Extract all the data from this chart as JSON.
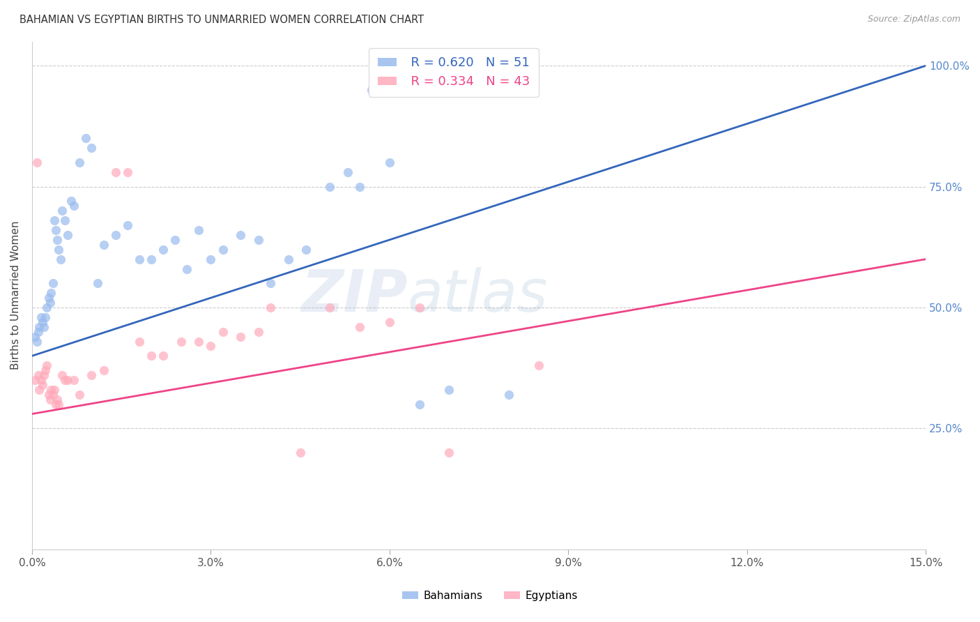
{
  "title": "BAHAMIAN VS EGYPTIAN BIRTHS TO UNMARRIED WOMEN CORRELATION CHART",
  "source": "Source: ZipAtlas.com",
  "ylabel": "Births to Unmarried Women",
  "xlim": [
    0.0,
    15.0
  ],
  "ylim": [
    0.0,
    105.0
  ],
  "ytick_vals": [
    25.0,
    50.0,
    75.0,
    100.0
  ],
  "xtick_vals": [
    0.0,
    3.0,
    6.0,
    9.0,
    12.0,
    15.0
  ],
  "legend_blue_r": "R = 0.620",
  "legend_blue_n": "N = 51",
  "legend_pink_r": "R = 0.334",
  "legend_pink_n": "N = 43",
  "blue_dot_color": "#99BBEE",
  "pink_dot_color": "#FFAABB",
  "blue_line_color": "#3366BB",
  "pink_line_color": "#EE4488",
  "blue_label": "Bahamians",
  "pink_label": "Egyptians",
  "watermark_color": "#C8D8EE",
  "watermark_alpha": 0.4,
  "title_color": "#333333",
  "source_color": "#999999",
  "grid_color": "#CCCCCC",
  "right_tick_color": "#5588CC",
  "bahamians_x": [
    0.05,
    0.08,
    0.1,
    0.12,
    0.15,
    0.18,
    0.2,
    0.22,
    0.25,
    0.28,
    0.3,
    0.32,
    0.35,
    0.38,
    0.4,
    0.42,
    0.45,
    0.48,
    0.5,
    0.55,
    0.6,
    0.65,
    0.7,
    0.8,
    0.9,
    1.0,
    1.1,
    1.2,
    1.4,
    1.6,
    1.8,
    2.0,
    2.2,
    2.4,
    2.6,
    2.8,
    3.0,
    3.2,
    3.5,
    3.8,
    4.0,
    4.3,
    4.6,
    5.0,
    5.5,
    6.0,
    6.5,
    7.0,
    8.0,
    5.3,
    5.7
  ],
  "bahamians_y": [
    44.0,
    43.0,
    45.0,
    46.0,
    48.0,
    47.0,
    46.0,
    48.0,
    50.0,
    52.0,
    51.0,
    53.0,
    55.0,
    68.0,
    66.0,
    64.0,
    62.0,
    60.0,
    70.0,
    68.0,
    65.0,
    72.0,
    71.0,
    80.0,
    85.0,
    83.0,
    55.0,
    63.0,
    65.0,
    67.0,
    60.0,
    60.0,
    62.0,
    64.0,
    58.0,
    66.0,
    60.0,
    62.0,
    65.0,
    64.0,
    55.0,
    60.0,
    62.0,
    75.0,
    75.0,
    80.0,
    30.0,
    33.0,
    32.0,
    78.0,
    95.0
  ],
  "egyptians_x": [
    0.05,
    0.1,
    0.12,
    0.15,
    0.18,
    0.2,
    0.22,
    0.25,
    0.28,
    0.3,
    0.32,
    0.35,
    0.38,
    0.4,
    0.42,
    0.45,
    0.5,
    0.55,
    0.6,
    0.7,
    0.8,
    1.0,
    1.2,
    1.4,
    1.6,
    1.8,
    2.0,
    2.2,
    2.5,
    2.8,
    3.0,
    3.2,
    3.5,
    3.8,
    4.0,
    5.0,
    6.5,
    8.5,
    5.5,
    6.0,
    7.0,
    4.5,
    0.08
  ],
  "egyptians_y": [
    35.0,
    36.0,
    33.0,
    35.0,
    34.0,
    36.0,
    37.0,
    38.0,
    32.0,
    31.0,
    33.0,
    32.0,
    33.0,
    30.0,
    31.0,
    30.0,
    36.0,
    35.0,
    35.0,
    35.0,
    32.0,
    36.0,
    37.0,
    78.0,
    78.0,
    43.0,
    40.0,
    40.0,
    43.0,
    43.0,
    42.0,
    45.0,
    44.0,
    45.0,
    50.0,
    50.0,
    50.0,
    38.0,
    46.0,
    47.0,
    20.0,
    20.0,
    80.0
  ]
}
